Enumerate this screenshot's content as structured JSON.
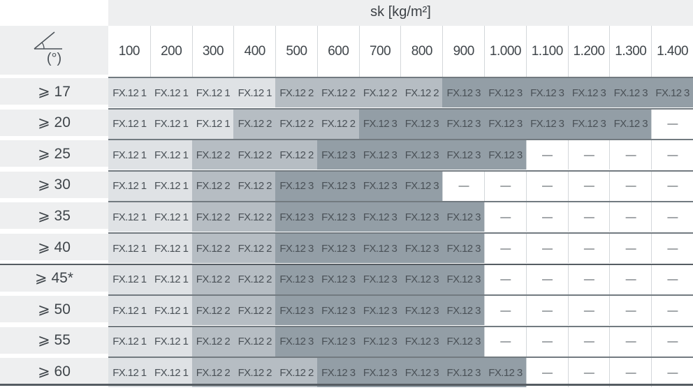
{
  "header": {
    "title": "sk [kg/m²]",
    "angle_unit": "(°)",
    "angle_icon": "roof-angle-icon"
  },
  "columns": [
    "100",
    "200",
    "300",
    "400",
    "500",
    "600",
    "700",
    "800",
    "900",
    "1.000",
    "1.100",
    "1.200",
    "1.300",
    "1.400"
  ],
  "colors": {
    "level1": "#dfe2e5",
    "level2": "#b6bdc3",
    "level3": "#939ea6",
    "none": "#ffffff"
  },
  "rows": [
    {
      "label": "⩾ 17",
      "cells": [
        "FX.12 1",
        "FX.12 1",
        "FX.12 1",
        "FX.12 1",
        "FX.12 2",
        "FX.12 2",
        "FX.12 2",
        "FX.12 2",
        "FX.12 3",
        "FX.12 3",
        "FX.12 3",
        "FX.12 3",
        "FX.12 3",
        "FX.12 3"
      ]
    },
    {
      "label": "⩾ 20",
      "cells": [
        "FX.12 1",
        "FX.12 1",
        "FX.12 1",
        "FX.12 2",
        "FX.12 2",
        "FX.12 2",
        "FX.12 3",
        "FX.12 3",
        "FX.12 3",
        "FX.12 3",
        "FX.12 3",
        "FX.12 3",
        "FX.12 3",
        "—"
      ]
    },
    {
      "label": "⩾ 25",
      "cells": [
        "FX.12 1",
        "FX.12 1",
        "FX.12 2",
        "FX.12 2",
        "FX.12 2",
        "FX.12 3",
        "FX.12 3",
        "FX.12 3",
        "FX.12 3",
        "FX.12 3",
        "—",
        "—",
        "—",
        "—"
      ]
    },
    {
      "label": "⩾ 30",
      "cells": [
        "FX.12 1",
        "FX.12 1",
        "FX.12 2",
        "FX.12 2",
        "FX.12 3",
        "FX.12 3",
        "FX.12 3",
        "FX.12 3",
        "—",
        "—",
        "—",
        "—",
        "—",
        "—"
      ]
    },
    {
      "label": "⩾ 35",
      "cells": [
        "FX.12 1",
        "FX.12 1",
        "FX.12 2",
        "FX.12 2",
        "FX.12 3",
        "FX.12 3",
        "FX.12 3",
        "FX.12 3",
        "FX.12 3",
        "—",
        "—",
        "—",
        "—",
        "—"
      ]
    },
    {
      "label": "⩾ 40",
      "cells": [
        "FX.12 1",
        "FX.12 1",
        "FX.12 2",
        "FX.12 2",
        "FX.12 3",
        "FX.12 3",
        "FX.12 3",
        "FX.12 3",
        "FX.12 3",
        "—",
        "—",
        "—",
        "—",
        "—"
      ]
    },
    {
      "label": "⩾ 45*",
      "cells": [
        "FX.12 1",
        "FX.12 1",
        "FX.12 2",
        "FX.12 2",
        "FX.12 3",
        "FX.12 3",
        "FX.12 3",
        "FX.12 3",
        "FX.12 3",
        "—",
        "—",
        "—",
        "—",
        "—"
      ]
    },
    {
      "label": "⩾ 50",
      "cells": [
        "FX.12 1",
        "FX.12 1",
        "FX.12 2",
        "FX.12 2",
        "FX.12 3",
        "FX.12 3",
        "FX.12 3",
        "FX.12 3",
        "FX.12 3",
        "—",
        "—",
        "—",
        "—",
        "—"
      ]
    },
    {
      "label": "⩾ 55",
      "cells": [
        "FX.12 1",
        "FX.12 1",
        "FX.12 2",
        "FX.12 2",
        "FX.12 3",
        "FX.12 3",
        "FX.12 3",
        "FX.12 3",
        "FX.12 3",
        "—",
        "—",
        "—",
        "—",
        "—"
      ]
    },
    {
      "label": "⩾ 60",
      "cells": [
        "FX.12 1",
        "FX.12 1",
        "FX.12 2",
        "FX.12 2",
        "FX.12 2",
        "FX.12 3",
        "FX.12 3",
        "FX.12 3",
        "FX.12 3",
        "FX.12 3",
        "—",
        "—",
        "—",
        "—"
      ]
    }
  ]
}
